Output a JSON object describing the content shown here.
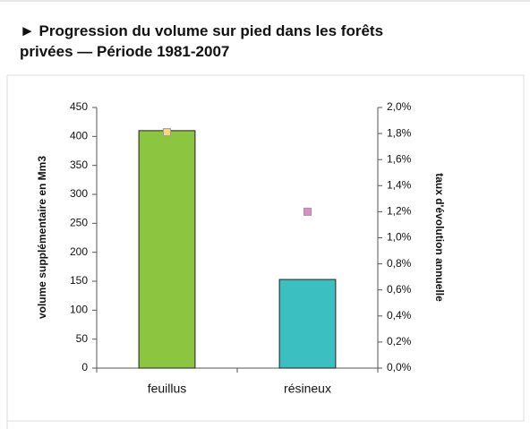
{
  "chart_data": {
    "type": "bar",
    "title_lines": [
      "► Progression du volume sur pied dans les forêts",
      "privées — Période 1981-2007"
    ],
    "y_label": "volume supplémentaire en Mm3",
    "y2_label": "taux d'évolution annuelle",
    "categories": [
      "feuillus",
      "résineux"
    ],
    "series": [
      {
        "colors": [
          "#8cc540",
          "#3bbfc1"
        ],
        "values": [
          410,
          153
        ]
      },
      {
        "axis": "y2",
        "colors": [
          "#f8d77a",
          "#e38bc8"
        ],
        "values": [
          1.81,
          1.2
        ]
      }
    ],
    "ylim": [
      0,
      450
    ],
    "yticks": [
      0,
      50,
      100,
      150,
      200,
      250,
      300,
      350,
      400,
      450
    ],
    "y2lim": [
      0,
      2.0
    ],
    "y2ticks": [
      {
        "value": 0,
        "label": "0,0%"
      },
      {
        "value": 0.2,
        "label": "0,2%"
      },
      {
        "value": 0.4,
        "label": "0,4%"
      },
      {
        "value": 0.6,
        "label": "0,6%"
      },
      {
        "value": 0.8,
        "label": "0,8%"
      },
      {
        "value": 1.0,
        "label": "1,0%"
      },
      {
        "value": 1.2,
        "label": "1,2%"
      },
      {
        "value": 1.4,
        "label": "1,4%"
      },
      {
        "value": 1.6,
        "label": "1,6%"
      },
      {
        "value": 1.8,
        "label": "1,8%"
      },
      {
        "value": 2.0,
        "label": "2,0%"
      }
    ]
  }
}
